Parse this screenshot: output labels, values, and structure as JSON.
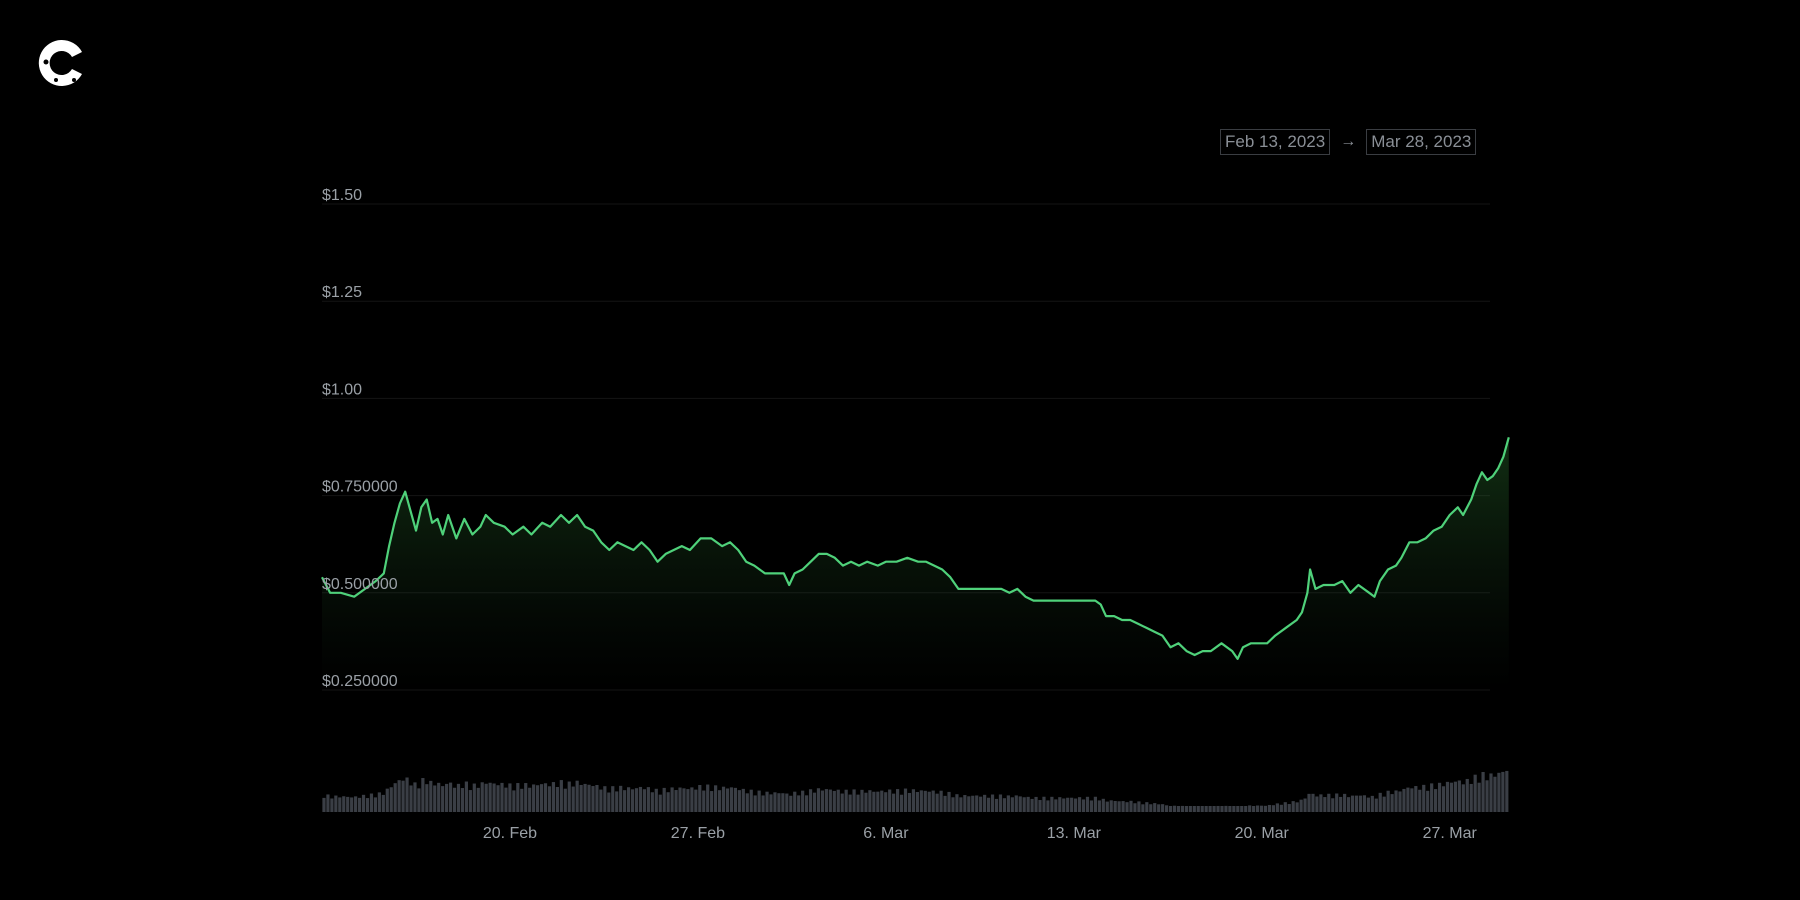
{
  "brand": {
    "logo_icon": "coin-logo-icon"
  },
  "date_range": {
    "start": "Feb 13, 2023",
    "separator": "→",
    "end": "Mar 28, 2023"
  },
  "colors": {
    "line": "#4fd17a",
    "volume": "#3a3e45",
    "grid": "#141414",
    "background": "#000000"
  },
  "chart_data": {
    "type": "line",
    "y_ticks": [
      "$1.50",
      "$1.25",
      "$1.00",
      "$0.750000",
      "$0.500000",
      "$0.250000"
    ],
    "y_tick_values": [
      1.5,
      1.25,
      1.0,
      0.75,
      0.5,
      0.25
    ],
    "ylim": [
      0.25,
      1.5
    ],
    "x_ticks": [
      "20. Feb",
      "27. Feb",
      "6. Mar",
      "13. Mar",
      "20. Mar",
      "27. Mar"
    ],
    "x_tick_days": [
      7,
      14,
      21,
      28,
      35,
      42
    ],
    "xlim": [
      0,
      43.5
    ],
    "series": [
      {
        "values": [
          [
            0,
            0.54
          ],
          [
            0.3,
            0.5
          ],
          [
            0.7,
            0.5
          ],
          [
            1.2,
            0.49
          ],
          [
            1.6,
            0.51
          ],
          [
            2.0,
            0.53
          ],
          [
            2.3,
            0.55
          ],
          [
            2.5,
            0.62
          ],
          [
            2.7,
            0.68
          ],
          [
            2.9,
            0.73
          ],
          [
            3.1,
            0.76
          ],
          [
            3.3,
            0.71
          ],
          [
            3.5,
            0.66
          ],
          [
            3.7,
            0.72
          ],
          [
            3.9,
            0.74
          ],
          [
            4.1,
            0.68
          ],
          [
            4.3,
            0.69
          ],
          [
            4.5,
            0.65
          ],
          [
            4.7,
            0.7
          ],
          [
            5.0,
            0.64
          ],
          [
            5.3,
            0.69
          ],
          [
            5.6,
            0.65
          ],
          [
            5.9,
            0.67
          ],
          [
            6.1,
            0.7
          ],
          [
            6.4,
            0.68
          ],
          [
            6.8,
            0.67
          ],
          [
            7.1,
            0.65
          ],
          [
            7.5,
            0.67
          ],
          [
            7.8,
            0.65
          ],
          [
            8.2,
            0.68
          ],
          [
            8.5,
            0.67
          ],
          [
            8.9,
            0.7
          ],
          [
            9.2,
            0.68
          ],
          [
            9.5,
            0.7
          ],
          [
            9.8,
            0.67
          ],
          [
            10.1,
            0.66
          ],
          [
            10.4,
            0.63
          ],
          [
            10.7,
            0.61
          ],
          [
            11.0,
            0.63
          ],
          [
            11.3,
            0.62
          ],
          [
            11.6,
            0.61
          ],
          [
            11.9,
            0.63
          ],
          [
            12.2,
            0.61
          ],
          [
            12.5,
            0.58
          ],
          [
            12.8,
            0.6
          ],
          [
            13.1,
            0.61
          ],
          [
            13.4,
            0.62
          ],
          [
            13.7,
            0.61
          ],
          [
            14.1,
            0.64
          ],
          [
            14.5,
            0.64
          ],
          [
            14.9,
            0.62
          ],
          [
            15.2,
            0.63
          ],
          [
            15.5,
            0.61
          ],
          [
            15.8,
            0.58
          ],
          [
            16.1,
            0.57
          ],
          [
            16.5,
            0.55
          ],
          [
            16.9,
            0.55
          ],
          [
            17.2,
            0.55
          ],
          [
            17.4,
            0.52
          ],
          [
            17.6,
            0.55
          ],
          [
            17.9,
            0.56
          ],
          [
            18.2,
            0.58
          ],
          [
            18.5,
            0.6
          ],
          [
            18.8,
            0.6
          ],
          [
            19.1,
            0.59
          ],
          [
            19.4,
            0.57
          ],
          [
            19.7,
            0.58
          ],
          [
            20.0,
            0.57
          ],
          [
            20.3,
            0.58
          ],
          [
            20.7,
            0.57
          ],
          [
            21.0,
            0.58
          ],
          [
            21.4,
            0.58
          ],
          [
            21.8,
            0.59
          ],
          [
            22.2,
            0.58
          ],
          [
            22.5,
            0.58
          ],
          [
            22.8,
            0.57
          ],
          [
            23.1,
            0.56
          ],
          [
            23.4,
            0.54
          ],
          [
            23.7,
            0.51
          ],
          [
            24.1,
            0.51
          ],
          [
            24.5,
            0.51
          ],
          [
            24.9,
            0.51
          ],
          [
            25.3,
            0.51
          ],
          [
            25.6,
            0.5
          ],
          [
            25.9,
            0.51
          ],
          [
            26.2,
            0.49
          ],
          [
            26.5,
            0.48
          ],
          [
            26.9,
            0.48
          ],
          [
            27.3,
            0.48
          ],
          [
            27.7,
            0.48
          ],
          [
            28.1,
            0.48
          ],
          [
            28.5,
            0.48
          ],
          [
            28.8,
            0.48
          ],
          [
            29.0,
            0.47
          ],
          [
            29.2,
            0.44
          ],
          [
            29.5,
            0.44
          ],
          [
            29.8,
            0.43
          ],
          [
            30.1,
            0.43
          ],
          [
            30.4,
            0.42
          ],
          [
            30.7,
            0.41
          ],
          [
            31.0,
            0.4
          ],
          [
            31.3,
            0.39
          ],
          [
            31.6,
            0.36
          ],
          [
            31.9,
            0.37
          ],
          [
            32.2,
            0.35
          ],
          [
            32.5,
            0.34
          ],
          [
            32.8,
            0.35
          ],
          [
            33.1,
            0.35
          ],
          [
            33.5,
            0.37
          ],
          [
            33.9,
            0.35
          ],
          [
            34.1,
            0.33
          ],
          [
            34.3,
            0.36
          ],
          [
            34.6,
            0.37
          ],
          [
            34.9,
            0.37
          ],
          [
            35.2,
            0.37
          ],
          [
            35.5,
            0.39
          ],
          [
            35.9,
            0.41
          ],
          [
            36.3,
            0.43
          ],
          [
            36.5,
            0.45
          ],
          [
            36.7,
            0.5
          ],
          [
            36.8,
            0.56
          ],
          [
            37.0,
            0.51
          ],
          [
            37.3,
            0.52
          ],
          [
            37.7,
            0.52
          ],
          [
            38.0,
            0.53
          ],
          [
            38.3,
            0.5
          ],
          [
            38.6,
            0.52
          ],
          [
            39.0,
            0.5
          ],
          [
            39.2,
            0.49
          ],
          [
            39.4,
            0.53
          ],
          [
            39.7,
            0.56
          ],
          [
            40.0,
            0.57
          ],
          [
            40.2,
            0.59
          ],
          [
            40.5,
            0.63
          ],
          [
            40.8,
            0.63
          ],
          [
            41.1,
            0.64
          ],
          [
            41.4,
            0.66
          ],
          [
            41.7,
            0.67
          ],
          [
            42.0,
            0.7
          ],
          [
            42.3,
            0.72
          ],
          [
            42.5,
            0.7
          ],
          [
            42.8,
            0.74
          ],
          [
            43.0,
            0.78
          ],
          [
            43.2,
            0.81
          ],
          [
            43.4,
            0.79
          ],
          [
            43.6,
            0.8
          ],
          [
            43.8,
            0.82
          ],
          [
            44.0,
            0.85
          ],
          [
            44.2,
            0.9
          ]
        ]
      }
    ]
  }
}
